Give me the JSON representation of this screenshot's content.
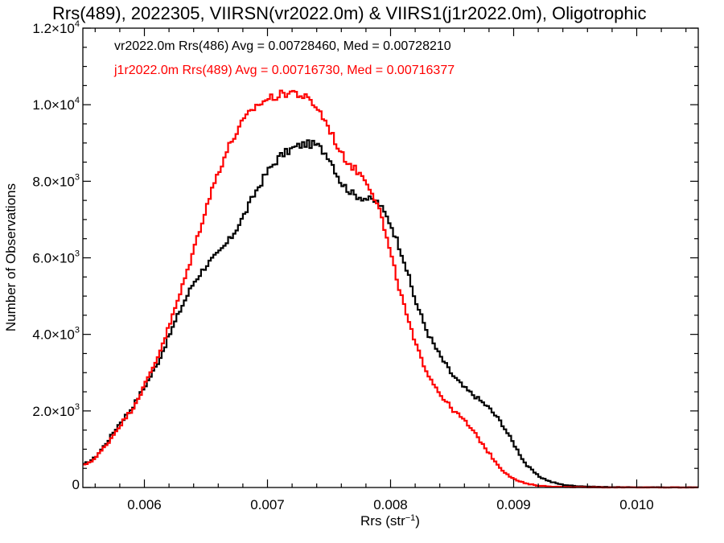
{
  "chart_data": {
    "type": "step-histogram",
    "title": "Rrs(489), 2022305, VIIRSN(vr2022.0m) & VIIRS1(j1r2022.0m), Oligotrophic",
    "xlabel": "Rrs (str",
    "xlabel_sup": "−1",
    "xlabel_suffix": ")",
    "ylabel": "Number of Observations",
    "xlim": [
      0.0055,
      0.0105
    ],
    "ylim": [
      0,
      12000
    ],
    "grid": false,
    "x_ticks": [
      {
        "value": 0.006,
        "label": "0.006"
      },
      {
        "value": 0.007,
        "label": "0.007"
      },
      {
        "value": 0.008,
        "label": "0.008"
      },
      {
        "value": 0.009,
        "label": "0.009"
      },
      {
        "value": 0.01,
        "label": "0.010"
      }
    ],
    "y_ticks": [
      {
        "value": 0,
        "mant": "0",
        "exp": ""
      },
      {
        "value": 2000,
        "mant": "2.0×10",
        "exp": "3"
      },
      {
        "value": 4000,
        "mant": "4.0×10",
        "exp": "3"
      },
      {
        "value": 6000,
        "mant": "6.0×10",
        "exp": "3"
      },
      {
        "value": 8000,
        "mant": "8.0×10",
        "exp": "3"
      },
      {
        "value": 10000,
        "mant": "1.0×10",
        "exp": "4"
      },
      {
        "value": 12000,
        "mant": "1.2×10",
        "exp": "4"
      }
    ],
    "legend_position": "top-left",
    "bin_width": 2e-05,
    "series": [
      {
        "name": "vr2022.0m Rrs(486) Avg = 0.00728460, Med = 0.00728210",
        "color": "#000000",
        "points": [
          [
            0.0055,
            580
          ],
          [
            0.0056,
            780
          ],
          [
            0.0057,
            1200
          ],
          [
            0.0058,
            1680
          ],
          [
            0.0059,
            2080
          ],
          [
            0.006,
            2620
          ],
          [
            0.0061,
            3200
          ],
          [
            0.0062,
            3950
          ],
          [
            0.0063,
            4700
          ],
          [
            0.0064,
            5350
          ],
          [
            0.0065,
            5800
          ],
          [
            0.0066,
            6100
          ],
          [
            0.0067,
            6500
          ],
          [
            0.0068,
            7050
          ],
          [
            0.0069,
            7700
          ],
          [
            0.007,
            8250
          ],
          [
            0.0071,
            8650
          ],
          [
            0.0072,
            8850
          ],
          [
            0.0073,
            8980
          ],
          [
            0.0074,
            8950
          ],
          [
            0.0075,
            8650
          ],
          [
            0.0076,
            7950
          ],
          [
            0.0077,
            7650
          ],
          [
            0.0078,
            7550
          ],
          [
            0.0079,
            7450
          ],
          [
            0.008,
            6900
          ],
          [
            0.0081,
            6050
          ],
          [
            0.0082,
            4900
          ],
          [
            0.0083,
            4050
          ],
          [
            0.0084,
            3450
          ],
          [
            0.0085,
            2950
          ],
          [
            0.0086,
            2600
          ],
          [
            0.0087,
            2350
          ],
          [
            0.0088,
            2080
          ],
          [
            0.0089,
            1700
          ],
          [
            0.009,
            1150
          ],
          [
            0.0091,
            600
          ],
          [
            0.0092,
            300
          ],
          [
            0.0093,
            150
          ],
          [
            0.0094,
            70
          ],
          [
            0.0095,
            40
          ],
          [
            0.0096,
            25
          ],
          [
            0.0097,
            15
          ],
          [
            0.0098,
            10
          ],
          [
            0.01,
            5
          ],
          [
            0.0105,
            2
          ]
        ]
      },
      {
        "name": "j1r2022.0m Rrs(489) Avg = 0.00716730, Med = 0.00716377",
        "color": "#ff0000",
        "points": [
          [
            0.0055,
            560
          ],
          [
            0.0056,
            760
          ],
          [
            0.0057,
            1150
          ],
          [
            0.0058,
            1620
          ],
          [
            0.0059,
            2040
          ],
          [
            0.006,
            2650
          ],
          [
            0.0061,
            3350
          ],
          [
            0.0062,
            4200
          ],
          [
            0.0063,
            5150
          ],
          [
            0.0064,
            6200
          ],
          [
            0.0065,
            7300
          ],
          [
            0.0066,
            8250
          ],
          [
            0.0067,
            9000
          ],
          [
            0.0068,
            9550
          ],
          [
            0.0069,
            9950
          ],
          [
            0.007,
            10150
          ],
          [
            0.0071,
            10250
          ],
          [
            0.0072,
            10350
          ],
          [
            0.0073,
            10200
          ],
          [
            0.0074,
            9950
          ],
          [
            0.0075,
            9400
          ],
          [
            0.0076,
            8700
          ],
          [
            0.0077,
            8350
          ],
          [
            0.0078,
            8050
          ],
          [
            0.0079,
            7400
          ],
          [
            0.008,
            6100
          ],
          [
            0.0081,
            4850
          ],
          [
            0.0082,
            3750
          ],
          [
            0.0083,
            3000
          ],
          [
            0.0084,
            2450
          ],
          [
            0.0085,
            2050
          ],
          [
            0.0086,
            1750
          ],
          [
            0.0087,
            1350
          ],
          [
            0.0088,
            900
          ],
          [
            0.0089,
            480
          ],
          [
            0.009,
            220
          ],
          [
            0.0091,
            100
          ],
          [
            0.0092,
            50
          ],
          [
            0.0093,
            25
          ],
          [
            0.0094,
            15
          ],
          [
            0.0095,
            8
          ],
          [
            0.0096,
            5
          ],
          [
            0.0098,
            3
          ],
          [
            0.01,
            2
          ],
          [
            0.0105,
            1
          ]
        ]
      }
    ]
  }
}
